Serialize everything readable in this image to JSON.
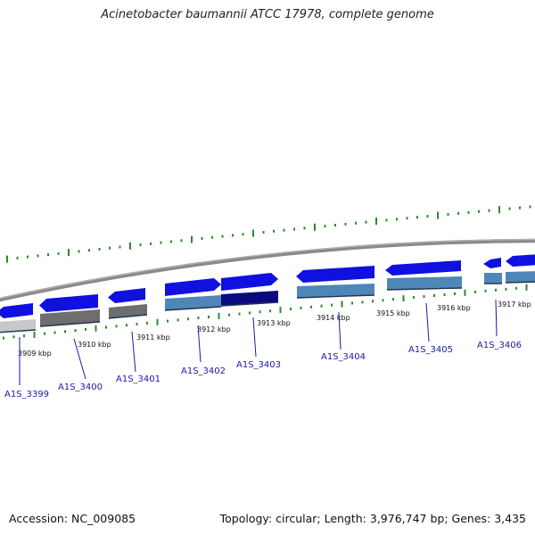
{
  "title": "Acinetobacter baumannii ATCC 17978, complete genome",
  "footer": {
    "accession": "Accession: NC_009085",
    "summary": "Topology: circular; Length: 3,976,747 bp; Genes: 3,435"
  },
  "colors": {
    "backbone": "#7f7f7f",
    "tick_major": "#2a8a2a",
    "tick_minor": "#2a8a2a",
    "gene_forward": "#1010e0",
    "gene_dark": "#0a0a80",
    "gene_steel": "#4f86b8",
    "gene_grey": "#6e6e6e",
    "gene_light": "#c8c8c8",
    "label": "#1a1aa8"
  },
  "kbp_labels": [
    "3909 kbp",
    "3910 kbp",
    "3911 kbp",
    "3912 kbp",
    "3913 kbp",
    "3914 kbp",
    "3915 kbp",
    "3916 kbp",
    "3917 kbp"
  ],
  "genes": [
    "A1S_3399",
    "A1S_3400",
    "A1S_3401",
    "A1S_3402",
    "A1S_3403",
    "A1S_3404",
    "A1S_3405",
    "A1S_3406"
  ]
}
